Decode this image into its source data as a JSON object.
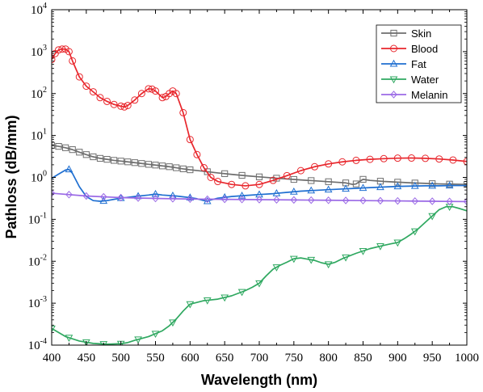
{
  "chart_data": {
    "type": "line",
    "xlabel": "Wavelength (nm)",
    "ylabel": "Pathloss (dB/mm)",
    "xlim": [
      400,
      1000
    ],
    "ylim": [
      0.0001,
      10000
    ],
    "y_scale": "log",
    "x_ticks": [
      400,
      450,
      500,
      550,
      600,
      650,
      700,
      750,
      800,
      850,
      900,
      950,
      1000
    ],
    "y_ticks": [
      {
        "base": "10",
        "exp": "4",
        "value": 10000
      },
      {
        "base": "10",
        "exp": "3",
        "value": 1000
      },
      {
        "base": "10",
        "exp": "2",
        "value": 100
      },
      {
        "base": "10",
        "exp": "1",
        "value": 10
      },
      {
        "base": "10",
        "exp": "0",
        "value": 1
      },
      {
        "base": "10",
        "exp": "-1",
        "value": 0.1
      },
      {
        "base": "10",
        "exp": "-2",
        "value": 0.01
      },
      {
        "base": "10",
        "exp": "-3",
        "value": 0.001
      },
      {
        "base": "10",
        "exp": "-4",
        "value": 0.0001
      }
    ],
    "grid": false,
    "legend_position": "top-right",
    "series": [
      {
        "name": "Skin",
        "color": "#6e6e6e",
        "marker": "square",
        "x": [
          400,
          410,
          420,
          430,
          440,
          450,
          460,
          470,
          480,
          490,
          500,
          510,
          520,
          530,
          540,
          550,
          560,
          570,
          580,
          590,
          600,
          620,
          640,
          660,
          680,
          700,
          720,
          740,
          760,
          780,
          800,
          815,
          825,
          835,
          840,
          845,
          850,
          860,
          880,
          900,
          920,
          940,
          960,
          980,
          1000
        ],
        "y": [
          5.8,
          5.5,
          5.1,
          4.6,
          4.0,
          3.5,
          3.1,
          2.85,
          2.7,
          2.55,
          2.45,
          2.35,
          2.25,
          2.15,
          2.05,
          1.97,
          1.88,
          1.8,
          1.7,
          1.6,
          1.52,
          1.4,
          1.28,
          1.18,
          1.1,
          1.03,
          0.97,
          0.92,
          0.87,
          0.83,
          0.79,
          0.76,
          0.74,
          0.68,
          0.7,
          0.8,
          0.9,
          0.85,
          0.8,
          0.77,
          0.74,
          0.72,
          0.7,
          0.69,
          0.68
        ],
        "marker_x": [
          400,
          410,
          420,
          430,
          440,
          450,
          460,
          470,
          480,
          490,
          500,
          510,
          520,
          530,
          540,
          550,
          560,
          570,
          580,
          590,
          600,
          625,
          650,
          675,
          700,
          725,
          750,
          775,
          800,
          825,
          840,
          850,
          875,
          900,
          925,
          950,
          975,
          1000
        ]
      },
      {
        "name": "Blood",
        "color": "#e8262c",
        "marker": "circle",
        "x": [
          400,
          405,
          410,
          415,
          420,
          425,
          430,
          440,
          450,
          460,
          470,
          480,
          490,
          500,
          505,
          510,
          520,
          530,
          540,
          545,
          550,
          560,
          565,
          570,
          575,
          580,
          590,
          600,
          610,
          620,
          630,
          640,
          660,
          680,
          700,
          720,
          740,
          760,
          780,
          800,
          820,
          840,
          860,
          880,
          900,
          920,
          940,
          960,
          980,
          1000
        ],
        "y": [
          650,
          900,
          1100,
          1150,
          1150,
          1000,
          600,
          250,
          150,
          110,
          80,
          65,
          55,
          50,
          48,
          52,
          70,
          100,
          130,
          128,
          115,
          80,
          85,
          100,
          115,
          100,
          35,
          8,
          3.5,
          1.7,
          1.0,
          0.8,
          0.68,
          0.63,
          0.68,
          0.85,
          1.1,
          1.45,
          1.8,
          2.1,
          2.35,
          2.55,
          2.7,
          2.8,
          2.88,
          2.9,
          2.85,
          2.75,
          2.6,
          2.4
        ]
      },
      {
        "name": "Fat",
        "color": "#1f6fd1",
        "marker": "triangle-up",
        "x": [
          400,
          410,
          420,
          425,
          430,
          440,
          450,
          460,
          470,
          480,
          490,
          500,
          520,
          540,
          550,
          560,
          580,
          600,
          610,
          620,
          625,
          630,
          640,
          660,
          680,
          700,
          720,
          740,
          760,
          780,
          800,
          820,
          840,
          860,
          880,
          900,
          920,
          940,
          960,
          980,
          1000
        ],
        "y": [
          0.95,
          1.2,
          1.5,
          1.55,
          1.25,
          0.6,
          0.35,
          0.28,
          0.27,
          0.28,
          0.3,
          0.32,
          0.35,
          0.38,
          0.4,
          0.38,
          0.36,
          0.33,
          0.31,
          0.28,
          0.27,
          0.29,
          0.32,
          0.35,
          0.37,
          0.39,
          0.41,
          0.44,
          0.47,
          0.49,
          0.51,
          0.53,
          0.55,
          0.57,
          0.59,
          0.61,
          0.62,
          0.63,
          0.63,
          0.64,
          0.64
        ],
        "marker_x": [
          425,
          475,
          500,
          525,
          550,
          575,
          600,
          625,
          650,
          675,
          700,
          725,
          750,
          775,
          800,
          825,
          850,
          875,
          900,
          925,
          950,
          975
        ]
      },
      {
        "name": "Water",
        "color": "#2fa860",
        "marker": "triangle-down",
        "x": [
          400,
          420,
          440,
          460,
          480,
          500,
          510,
          520,
          540,
          560,
          570,
          580,
          590,
          600,
          620,
          640,
          660,
          680,
          690,
          700,
          710,
          720,
          730,
          740,
          750,
          760,
          770,
          780,
          790,
          800,
          810,
          820,
          840,
          860,
          880,
          890,
          900,
          910,
          920,
          930,
          940,
          950,
          960,
          970,
          980,
          990,
          1000
        ],
        "y": [
          0.00025,
          0.00016,
          0.000125,
          0.00011,
          0.000105,
          0.000108,
          0.000115,
          0.00013,
          0.00016,
          0.00022,
          0.00029,
          0.00042,
          0.00065,
          0.00095,
          0.00115,
          0.00125,
          0.0015,
          0.002,
          0.0024,
          0.003,
          0.0045,
          0.0065,
          0.008,
          0.0095,
          0.0115,
          0.012,
          0.0112,
          0.0105,
          0.0092,
          0.0085,
          0.0095,
          0.0115,
          0.0155,
          0.02,
          0.024,
          0.026,
          0.028,
          0.035,
          0.045,
          0.06,
          0.085,
          0.12,
          0.17,
          0.2,
          0.2,
          0.18,
          0.16
        ],
        "marker_x": [
          400,
          425,
          450,
          475,
          500,
          525,
          550,
          575,
          600,
          625,
          650,
          675,
          700,
          725,
          750,
          775,
          800,
          825,
          850,
          875,
          900,
          925,
          950,
          975
        ]
      },
      {
        "name": "Melanin",
        "color": "#9b6ae6",
        "marker": "diamond",
        "x": [
          400,
          450,
          500,
          550,
          600,
          650,
          700,
          750,
          800,
          850,
          900,
          950,
          1000
        ],
        "y": [
          0.42,
          0.36,
          0.33,
          0.315,
          0.305,
          0.3,
          0.295,
          0.29,
          0.285,
          0.28,
          0.275,
          0.27,
          0.265
        ],
        "marker_x": [
          400,
          425,
          450,
          475,
          500,
          525,
          550,
          575,
          600,
          625,
          650,
          675,
          700,
          725,
          750,
          775,
          800,
          825,
          850,
          875,
          900,
          925,
          950,
          975,
          1000
        ]
      }
    ]
  }
}
